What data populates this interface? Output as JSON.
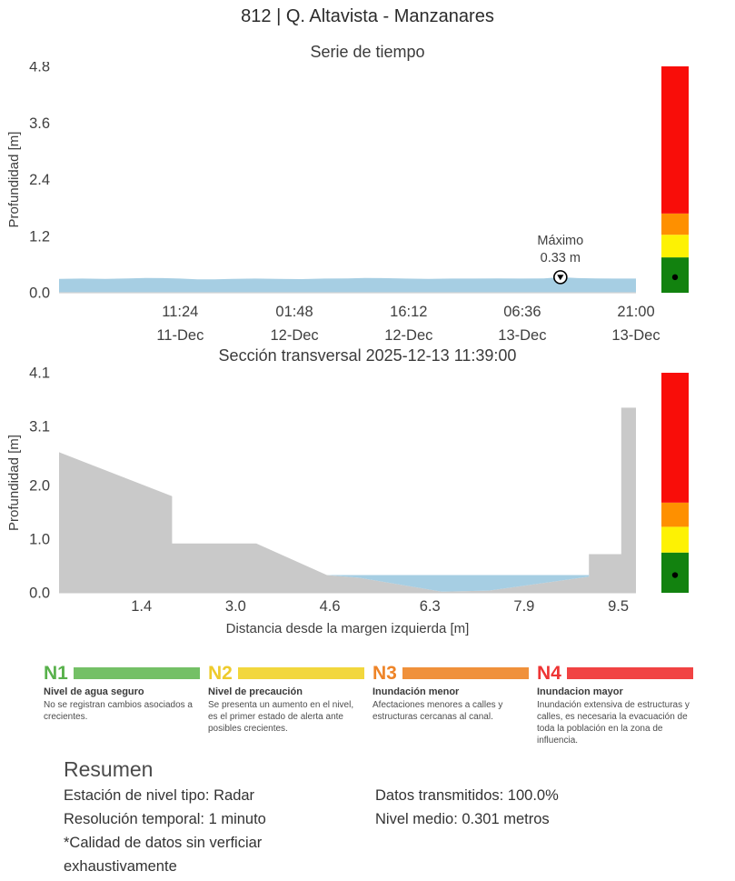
{
  "page": {
    "title": "812 | Q. Altavista - Manzanares"
  },
  "chart_data": [
    {
      "type": "area",
      "title": "Serie de tiempo",
      "ylabel": "Profundidad [m]",
      "ylim": [
        0,
        4.8
      ],
      "yticks": [
        0,
        1.2,
        2.4,
        3.6,
        4.8
      ],
      "xticks": [
        {
          "time": "11:24",
          "date": "11-Dec",
          "frac": 0.21
        },
        {
          "time": "01:48",
          "date": "12-Dec",
          "frac": 0.408
        },
        {
          "time": "16:12",
          "date": "12-Dec",
          "frac": 0.606
        },
        {
          "time": "06:36",
          "date": "13-Dec",
          "frac": 0.803
        },
        {
          "time": "21:00",
          "date": "13-Dec",
          "frac": 1.0
        }
      ],
      "series": [
        [
          0,
          0.295
        ],
        [
          0.04,
          0.3
        ],
        [
          0.08,
          0.295
        ],
        [
          0.12,
          0.305
        ],
        [
          0.15,
          0.315
        ],
        [
          0.18,
          0.31
        ],
        [
          0.21,
          0.3
        ],
        [
          0.24,
          0.285
        ],
        [
          0.27,
          0.285
        ],
        [
          0.3,
          0.295
        ],
        [
          0.34,
          0.3
        ],
        [
          0.38,
          0.295
        ],
        [
          0.42,
          0.29
        ],
        [
          0.46,
          0.3
        ],
        [
          0.5,
          0.305
        ],
        [
          0.53,
          0.315
        ],
        [
          0.56,
          0.31
        ],
        [
          0.6,
          0.3
        ],
        [
          0.64,
          0.295
        ],
        [
          0.68,
          0.3
        ],
        [
          0.72,
          0.3
        ],
        [
          0.76,
          0.305
        ],
        [
          0.8,
          0.3
        ],
        [
          0.84,
          0.305
        ],
        [
          0.869,
          0.33
        ],
        [
          0.9,
          0.31
        ],
        [
          0.93,
          0.305
        ],
        [
          0.96,
          0.3
        ],
        [
          1,
          0.3
        ]
      ],
      "max_marker": {
        "frac": 0.869,
        "value": 0.33,
        "label": "Máximo",
        "value_label": "0.33 m"
      },
      "fill_color": "#a6cee3"
    },
    {
      "type": "cross_section",
      "title": "Sección transversal 2025-12-13 11:39:00",
      "ylabel": "Profundidad [m]",
      "xlabel": "Distancia desde la margen izquierda [m]",
      "ylim": [
        0,
        4.1
      ],
      "yticks": [
        0,
        1.0,
        2.0,
        3.1,
        4.1
      ],
      "xlim": [
        0,
        9.8
      ],
      "xticks": [
        1.4,
        3.0,
        4.6,
        6.3,
        7.9,
        9.5
      ],
      "terrain": [
        [
          0,
          2.62
        ],
        [
          1.92,
          1.8
        ],
        [
          1.92,
          0.92
        ],
        [
          3.35,
          0.92
        ],
        [
          4.55,
          0.33
        ],
        [
          5.1,
          0.28
        ],
        [
          6.5,
          0.02
        ],
        [
          7.3,
          0.04
        ],
        [
          9.0,
          0.3
        ],
        [
          9.0,
          0.72
        ],
        [
          9.55,
          0.72
        ],
        [
          9.55,
          3.45
        ],
        [
          9.8,
          3.45
        ],
        [
          9.8,
          0
        ]
      ],
      "water_bed": [
        [
          4.55,
          0.33
        ],
        [
          5.1,
          0.28
        ],
        [
          6.5,
          0.02
        ],
        [
          7.3,
          0.04
        ],
        [
          9.0,
          0.3
        ]
      ],
      "water_surface": 0.33,
      "terrain_color": "#c9c9c9",
      "water_color": "#a6cee3"
    }
  ],
  "alert_bar": {
    "names": [
      "N1",
      "N2",
      "N3",
      "N4"
    ],
    "thresholds": [
      0,
      0.75,
      1.23,
      1.68
    ],
    "colors": [
      "#12820f",
      "#fdf203",
      "#fe9000",
      "#f90d09"
    ],
    "current_level": 0.33
  },
  "legend": {
    "items": [
      {
        "code": "N1",
        "color": "#74c066",
        "text_color": "#58b14b",
        "title": "Nivel de agua seguro",
        "desc": "No se registran cambios asociados a crecientes."
      },
      {
        "code": "N2",
        "color": "#f2d73d",
        "text_color": "#eecb2d",
        "title": "Nivel de precaución",
        "desc": "Se presenta un aumento en el nivel, es el primer estado de alerta ante posibles crecientes."
      },
      {
        "code": "N3",
        "color": "#f0913b",
        "text_color": "#ee8428",
        "title": "Inundación menor",
        "desc": "Afectaciones menores a calles y estructuras cercanas al canal."
      },
      {
        "code": "N4",
        "color": "#f14343",
        "text_color": "#ee3434",
        "title": "Inundacion mayor",
        "desc": "Inundación extensiva de estructuras y calles, es necesaria la evacuación de toda la población en la zona de influencia."
      }
    ]
  },
  "resumen": {
    "heading": "Resumen",
    "left": [
      "Estación de nivel tipo: Radar",
      "Resolución temporal: 1 minuto",
      "*Calidad de datos sin verficiar exhaustivamente"
    ],
    "right": [
      "Datos transmitidos: 100.0%",
      "Nivel medio: 0.301 metros"
    ]
  }
}
